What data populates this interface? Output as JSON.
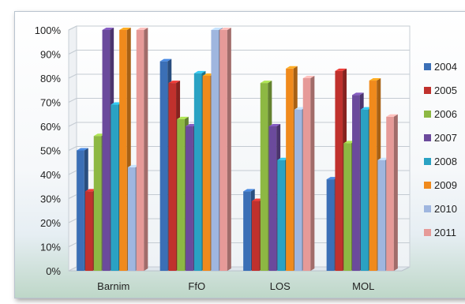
{
  "chart_data": {
    "type": "bar",
    "title": "",
    "xlabel": "",
    "ylabel": "",
    "ylim": [
      0,
      100
    ],
    "y_ticks": [
      "0%",
      "10%",
      "20%",
      "30%",
      "40%",
      "50%",
      "60%",
      "70%",
      "80%",
      "90%",
      "100%"
    ],
    "categories": [
      "Barnim",
      "FfO",
      "LOS",
      "MOL"
    ],
    "grid": true,
    "legend": "right",
    "series": [
      {
        "name": "2004",
        "color": "#3b6fb6",
        "values": [
          50,
          87,
          33,
          38
        ]
      },
      {
        "name": "2005",
        "color": "#c0312d",
        "values": [
          33,
          78,
          29,
          83
        ]
      },
      {
        "name": "2006",
        "color": "#8db843",
        "values": [
          56,
          63,
          78,
          53
        ]
      },
      {
        "name": "2007",
        "color": "#6b4a9c",
        "values": [
          100,
          60,
          60,
          73
        ]
      },
      {
        "name": "2008",
        "color": "#2aa2c3",
        "values": [
          69,
          82,
          46,
          67
        ]
      },
      {
        "name": "2009",
        "color": "#f08a1c",
        "values": [
          100,
          81,
          84,
          79
        ]
      },
      {
        "name": "2010",
        "color": "#9fb6df",
        "values": [
          43,
          100,
          67,
          46
        ]
      },
      {
        "name": "2011",
        "color": "#e69a98",
        "values": [
          100,
          100,
          80,
          64
        ]
      }
    ]
  }
}
